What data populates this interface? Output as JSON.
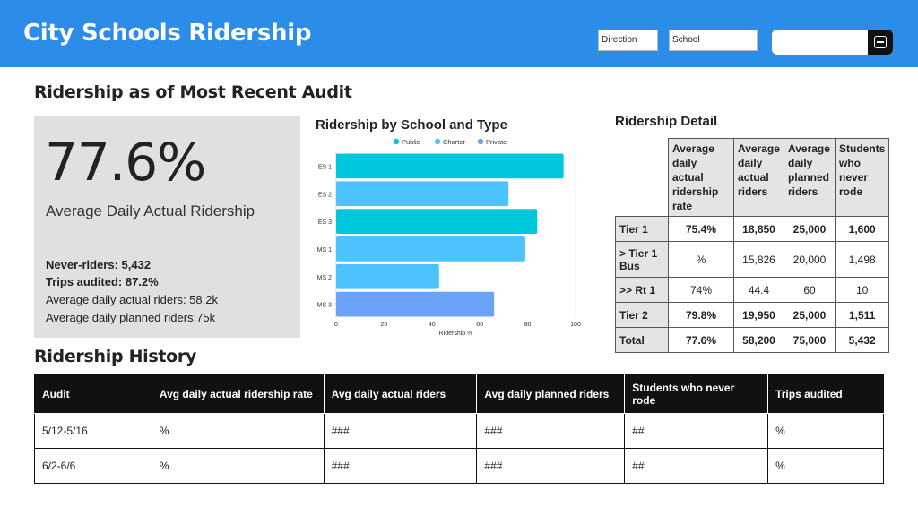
{
  "header": {
    "title": "City Schools Ridership",
    "filters": [
      {
        "label": "Direction"
      },
      {
        "label": "School"
      }
    ],
    "search_icon": "list-icon",
    "color": "#2b8de8"
  },
  "recent": {
    "title": "Ridership as of Most Recent Audit",
    "kpi_value": "77.6%",
    "kpi_label": "Average Daily Actual Ridership",
    "lines": [
      "Never-riders: 5,432",
      "Trips audited: 87.2%",
      "Average daily actual riders: 58.2k",
      "Average daily planned riders:75k"
    ]
  },
  "chart_title": "Ridership by School and Type",
  "chart_data": {
    "type": "bar",
    "orientation": "horizontal",
    "categories": [
      "ES 1",
      "ES 2",
      "ES 3",
      "MS 1",
      "MS 2",
      "MS 3"
    ],
    "values": [
      95,
      72,
      84,
      79,
      43,
      66
    ],
    "bar_types": [
      "Public",
      "Charter",
      "Public",
      "Charter",
      "Charter",
      "Private"
    ],
    "legend": [
      {
        "name": "Public",
        "color": "#00c8dc"
      },
      {
        "name": "Charter",
        "color": "#4cc3ff"
      },
      {
        "name": "Private",
        "color": "#6aa2f7"
      }
    ],
    "xlabel": "Ridership %",
    "xlim": [
      0,
      100
    ],
    "xticks": [
      "0",
      "20",
      "40",
      "60",
      "80",
      "100"
    ],
    "legend_position": "top",
    "grid": false
  },
  "detail": {
    "title": "Ridership Detail",
    "headers": [
      "Average daily actual ridership rate",
      "Average daily actual riders",
      "Average daily planned riders",
      "Students who never rode"
    ],
    "rows": [
      {
        "label": "Tier 1",
        "cells": [
          "75.4%",
          "18,850",
          "25,000",
          "1,600"
        ],
        "bold": true
      },
      {
        "label": "> Tier 1 Bus",
        "cells": [
          "%",
          "15,826",
          "20,000",
          "1,498"
        ],
        "bold": false
      },
      {
        "label": ">> Rt 1",
        "cells": [
          "74%",
          "44.4",
          "60",
          "10"
        ],
        "bold": false
      },
      {
        "label": "Tier 2",
        "cells": [
          "79.8%",
          "19,950",
          "25,000",
          "1,511"
        ],
        "bold": true
      },
      {
        "label": "Total",
        "cells": [
          "77.6%",
          "58,200",
          "75,000",
          "5,432"
        ],
        "bold": true
      }
    ]
  },
  "history": {
    "title": "Ridership History",
    "headers": [
      "Audit",
      "Avg daily actual ridership rate",
      "Avg daily actual riders",
      "Avg daily planned riders",
      "Students who never rode",
      "Trips audited"
    ],
    "rows": [
      [
        "5/12-5/16",
        "%",
        "###",
        "###",
        "##",
        "%"
      ],
      [
        "6/2-6/6",
        "%",
        "###",
        "###",
        "##",
        "%"
      ]
    ]
  }
}
